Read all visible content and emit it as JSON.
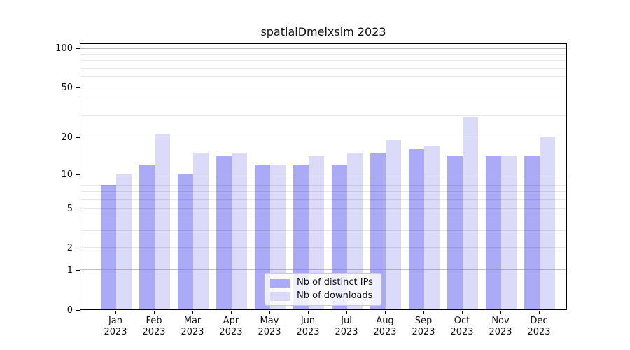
{
  "title": "spatialDmelxsim 2023",
  "chart_data": {
    "type": "bar",
    "title": "spatialDmelxsim 2023",
    "categories": [
      "Jan",
      "Feb",
      "Mar",
      "Apr",
      "May",
      "Jun",
      "Jul",
      "Aug",
      "Sep",
      "Oct",
      "Nov",
      "Dec"
    ],
    "year": "2023",
    "series": [
      {
        "name": "Nb of distinct IPs",
        "color": "#aaaaf7",
        "values": [
          8,
          12,
          10,
          14,
          12,
          12,
          12,
          15,
          16,
          14,
          14,
          14
        ]
      },
      {
        "name": "Nb of downloads",
        "color": "#dbdbf9",
        "values": [
          10,
          21,
          15,
          15,
          12,
          14,
          15,
          19,
          17,
          29,
          14,
          20
        ]
      }
    ],
    "y_axis": {
      "scale": "log10(value+1)",
      "tick_values": [
        100,
        50,
        20,
        10,
        5,
        2,
        1,
        0
      ],
      "emphasized_gridlines": [
        100,
        10,
        1
      ],
      "light_gridlines": [
        50,
        20,
        5,
        2
      ],
      "minor_gridlines": [
        90,
        80,
        70,
        60,
        40,
        30,
        9,
        8,
        7,
        6,
        4,
        3
      ],
      "ylim": [
        0,
        110
      ]
    },
    "legend": {
      "position": "bottom-center",
      "entries": [
        "Nb of distinct IPs",
        "Nb of downloads"
      ]
    },
    "colors": {
      "bar_distinct_ips": "#aaaaf7",
      "bar_downloads": "#dbdbf9",
      "grid_major": "rgba(125,125,125,0.50)",
      "grid_minor": "rgba(0,0,0,0.085)",
      "axis": "#000000",
      "background": "#ffffff"
    }
  }
}
